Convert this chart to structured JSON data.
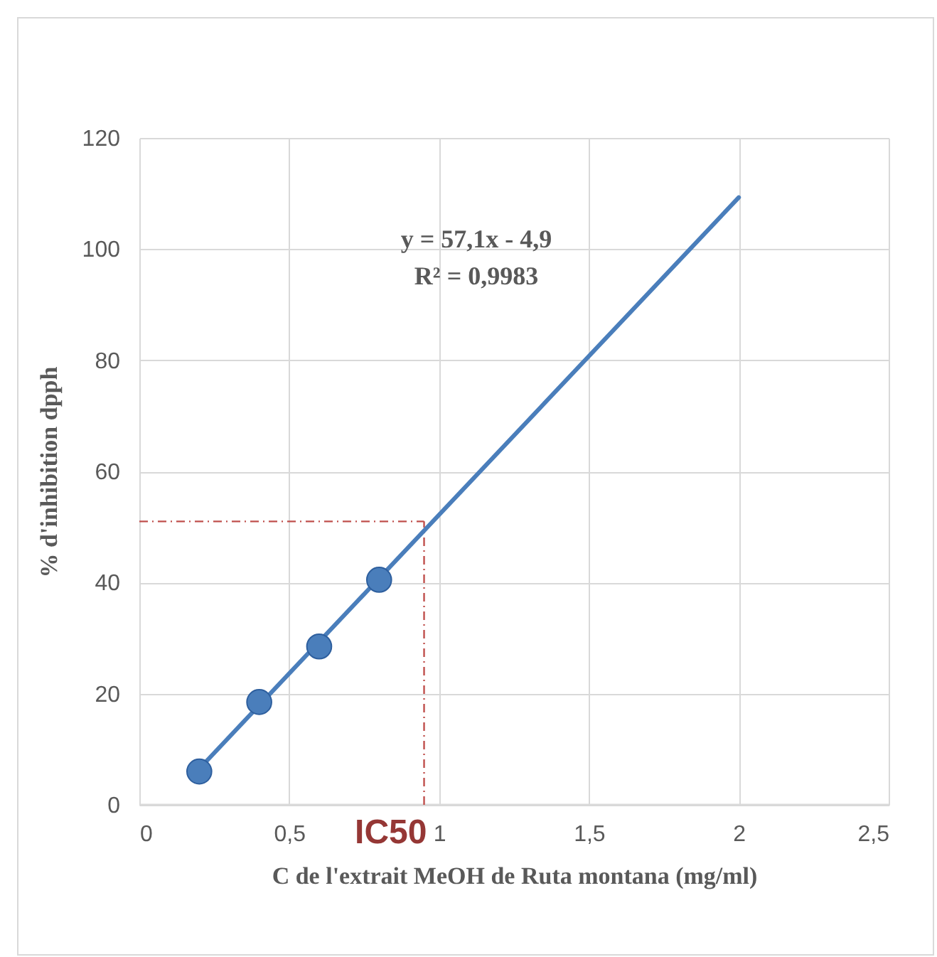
{
  "chart_data": {
    "type": "scatter",
    "xlabel": "C de l'extrait MeOH de Ruta montana (mg/ml)",
    "ylabel": "% d'inhibition dpph",
    "xlim": [
      0,
      2.5
    ],
    "xticks": [
      0,
      {
        "value": 0.5,
        "label": "0,5"
      },
      1,
      {
        "value": 1.5,
        "label": "1,5"
      },
      2,
      {
        "value": 2.5,
        "label": "2,5"
      }
    ],
    "ylim": [
      0,
      120
    ],
    "yticks": [
      0,
      20,
      40,
      60,
      80,
      100,
      120
    ],
    "grid": true,
    "series": [
      {
        "color": "#4a7ebb",
        "marker": "circle",
        "x": [
          0.2,
          0.4,
          0.6,
          0.8
        ],
        "values": [
          6,
          18.5,
          28.5,
          40.5
        ]
      },
      {
        "type": "line",
        "marker": "none",
        "color": "#4a7ebb",
        "x": [
          0.2,
          2
        ],
        "values": [
          6.5,
          109.3
        ]
      }
    ],
    "ref_lines": [
      {
        "axis": "y",
        "value": 51,
        "color": "#c0504d",
        "line_style": "dashdot"
      },
      {
        "axis": "x",
        "value": 0.95,
        "label": "IC50",
        "color": "#c0504d",
        "line_style": "dashdot"
      }
    ],
    "annotations": [
      "y = 57,1x - 4,9",
      "R² = 0,9983"
    ]
  }
}
